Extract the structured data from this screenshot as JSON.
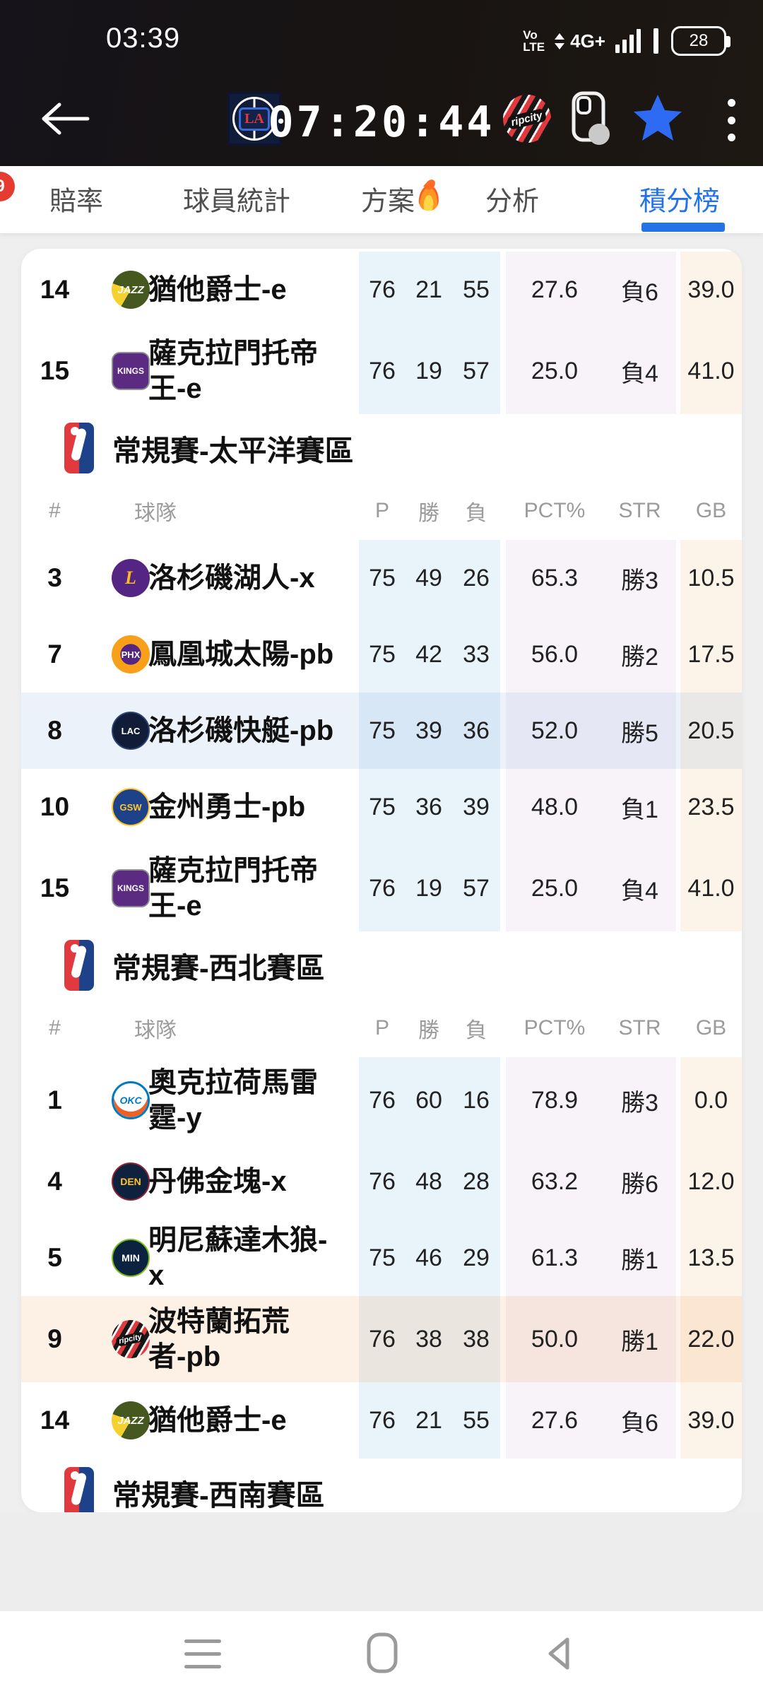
{
  "status_bar": {
    "time": "03:39",
    "volte_top": "Vo",
    "volte_bottom": "LTE",
    "network": "4G+",
    "battery_percent": "28"
  },
  "header": {
    "timer": "07:20:44",
    "home_logo": "clippers-logo",
    "home_logo_text": "LA",
    "away_logo": "ripcity-logo",
    "away_logo_text": "ripcity"
  },
  "tabs": {
    "badge": "9",
    "items": [
      {
        "label": "賠率"
      },
      {
        "label": "球員統計"
      },
      {
        "label": "方案",
        "fire": true
      },
      {
        "label": "分析"
      },
      {
        "label": "積分榜",
        "active": true
      }
    ]
  },
  "table": {
    "columns": {
      "rank": "#",
      "team": "球隊",
      "p": "P",
      "w": "勝",
      "l": "負",
      "pct": "PCT%",
      "str": "STR",
      "gb": "GB"
    },
    "blocks": [
      {
        "type": "rows",
        "rows": [
          {
            "rank": "14",
            "logo": "jazz-logo",
            "logo_text": "JAZZ",
            "name_lines": [
              "猶他爵士-e"
            ],
            "p": "76",
            "w": "21",
            "l": "55",
            "pct": "27.6",
            "str": "負6",
            "gb": "39.0",
            "highlight": ""
          },
          {
            "rank": "15",
            "logo": "kings-logo",
            "logo_text": "KINGS",
            "name_lines": [
              "薩克拉門托帝",
              "王-e"
            ],
            "p": "76",
            "w": "19",
            "l": "57",
            "pct": "25.0",
            "str": "負4",
            "gb": "41.0",
            "highlight": ""
          }
        ]
      },
      {
        "type": "section",
        "title": "常規賽-太平洋賽區"
      },
      {
        "type": "header"
      },
      {
        "type": "rows",
        "rows": [
          {
            "rank": "3",
            "logo": "lakers-logo",
            "logo_text": "L",
            "name_lines": [
              "洛杉磯湖人-x"
            ],
            "p": "75",
            "w": "49",
            "l": "26",
            "pct": "65.3",
            "str": "勝3",
            "gb": "10.5",
            "highlight": ""
          },
          {
            "rank": "7",
            "logo": "suns-logo",
            "logo_text": "PHX",
            "name_lines": [
              "鳳凰城太陽-pb"
            ],
            "p": "75",
            "w": "42",
            "l": "33",
            "pct": "56.0",
            "str": "勝2",
            "gb": "17.5",
            "highlight": ""
          },
          {
            "rank": "8",
            "logo": "clippers-logo",
            "logo_text": "LAC",
            "name_lines": [
              "洛杉磯快艇-pb"
            ],
            "p": "75",
            "w": "39",
            "l": "36",
            "pct": "52.0",
            "str": "勝5",
            "gb": "20.5",
            "highlight": "blue"
          },
          {
            "rank": "10",
            "logo": "warriors-logo",
            "logo_text": "GSW",
            "name_lines": [
              "金州勇士-pb"
            ],
            "p": "75",
            "w": "36",
            "l": "39",
            "pct": "48.0",
            "str": "負1",
            "gb": "23.5",
            "highlight": ""
          },
          {
            "rank": "15",
            "logo": "kings-logo",
            "logo_text": "KINGS",
            "name_lines": [
              "薩克拉門托帝",
              "王-e"
            ],
            "p": "76",
            "w": "19",
            "l": "57",
            "pct": "25.0",
            "str": "負4",
            "gb": "41.0",
            "highlight": ""
          }
        ]
      },
      {
        "type": "section",
        "title": "常規賽-西北賽區"
      },
      {
        "type": "header"
      },
      {
        "type": "rows",
        "rows": [
          {
            "rank": "1",
            "logo": "thunder-logo",
            "logo_text": "OKC",
            "name_lines": [
              "奧克拉荷馬雷",
              "霆-y"
            ],
            "p": "76",
            "w": "60",
            "l": "16",
            "pct": "78.9",
            "str": "勝3",
            "gb": "0.0",
            "highlight": ""
          },
          {
            "rank": "4",
            "logo": "nuggets-logo",
            "logo_text": "DEN",
            "name_lines": [
              "丹佛金塊-x"
            ],
            "p": "76",
            "w": "48",
            "l": "28",
            "pct": "63.2",
            "str": "勝6",
            "gb": "12.0",
            "highlight": ""
          },
          {
            "rank": "5",
            "logo": "timberwolves-logo",
            "logo_text": "MIN",
            "name_lines": [
              "明尼蘇達木狼-x"
            ],
            "p": "75",
            "w": "46",
            "l": "29",
            "pct": "61.3",
            "str": "勝1",
            "gb": "13.5",
            "highlight": ""
          },
          {
            "rank": "9",
            "logo": "blazers-logo",
            "logo_text": "ripcity",
            "name_lines": [
              "波特蘭拓荒",
              "者-pb"
            ],
            "p": "76",
            "w": "38",
            "l": "38",
            "pct": "50.0",
            "str": "勝1",
            "gb": "22.0",
            "highlight": "orange"
          },
          {
            "rank": "14",
            "logo": "jazz-logo",
            "logo_text": "JAZZ",
            "name_lines": [
              "猶他爵士-e"
            ],
            "p": "76",
            "w": "21",
            "l": "55",
            "pct": "27.6",
            "str": "負6",
            "gb": "39.0",
            "highlight": ""
          }
        ]
      },
      {
        "type": "section",
        "title": "常規賽-西南賽區"
      }
    ]
  },
  "icons": {
    "back": "arrow-left",
    "favorite": "star-filled",
    "more": "kebab-vertical-dots",
    "device": "phone-rotate",
    "nav_recents": "three-lines",
    "nav_home": "rounded-square",
    "nav_back": "triangle-left",
    "signal": "ascending-bars",
    "battery": "rounded-battery",
    "fire": "flame",
    "section_logo": "nba-logo"
  },
  "colors": {
    "accent_blue": "#2472e8",
    "star_blue": "#2e6bf2",
    "badge_red": "#e63b30",
    "band_blue": "#e9f3fa",
    "band_purple": "#f7f3f9",
    "band_orange": "#fdf4e9",
    "topbar_bg": "#17141a",
    "card_bg": "#ffffff",
    "page_bg": "#efefef"
  }
}
